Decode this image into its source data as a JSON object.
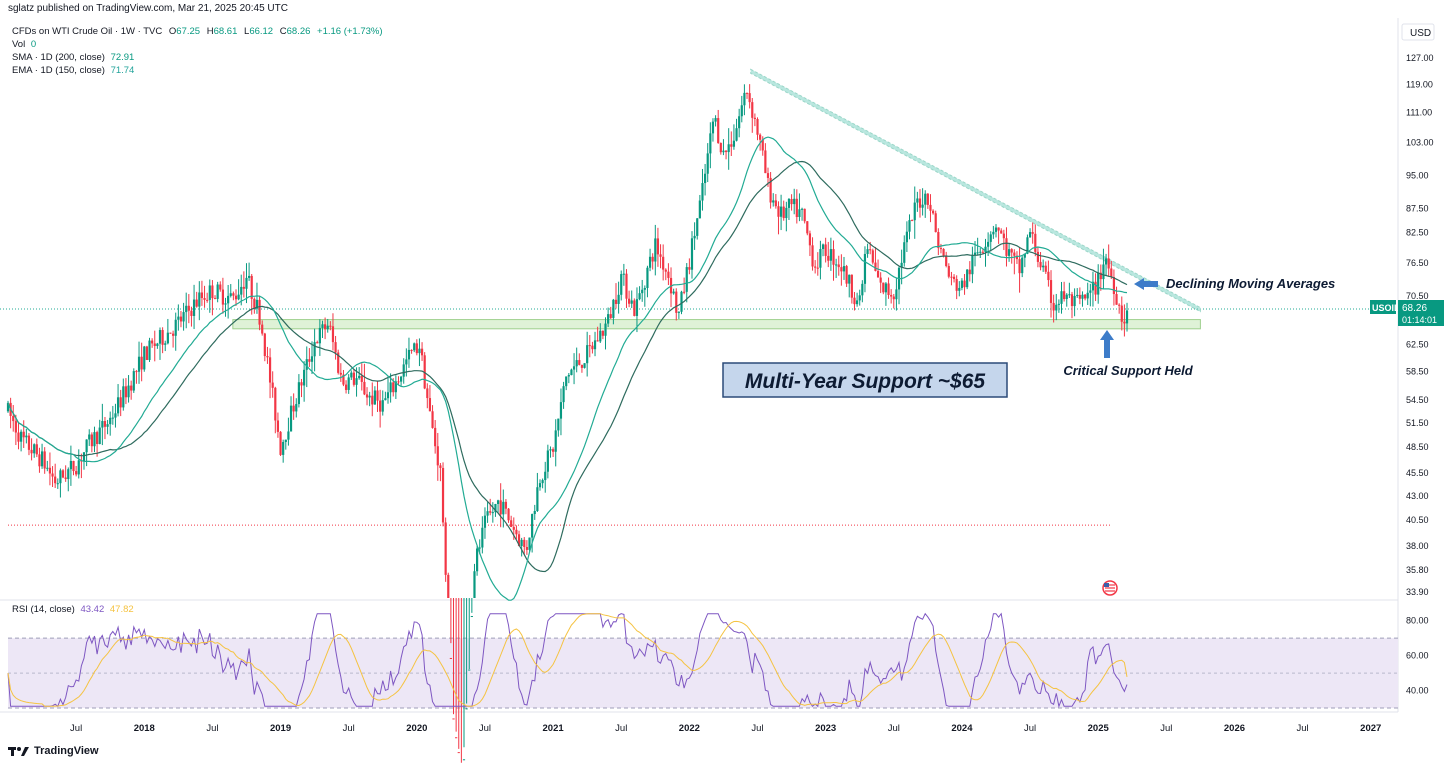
{
  "header": {
    "published": "sglatz published on TradingView.com, Mar 21, 2025 20:45 UTC"
  },
  "legend": {
    "symbol": "CFDs on WTI Crude Oil · 1W · TVC",
    "o_label": "O",
    "o_value": "67.25",
    "h_label": "H",
    "h_value": "68.61",
    "l_label": "L",
    "l_value": "66.12",
    "c_label": "C",
    "c_value": "68.26",
    "change": "+1.16 (+1.73%)",
    "vol_label": "Vol",
    "vol_value": "0",
    "sma_label": "SMA · 1D (200, close)",
    "sma_value": "72.91",
    "ema_label": "EMA · 1D (150, close)",
    "ema_value": "71.74"
  },
  "rsi_legend": {
    "label": "RSI (14, close)",
    "rsi_value": "43.42",
    "ma_value": "47.82"
  },
  "currency": "USD",
  "price_tag": {
    "symbol": "USOIL",
    "price": "68.26",
    "countdown": "01:14:01"
  },
  "annotations": {
    "support_box": "Multi-Year Support ~$65",
    "declining": "Declining Moving Averages",
    "critical": "Critical Support Held"
  },
  "footer": {
    "brand": "TradingView"
  },
  "colors": {
    "up": "#089981",
    "down": "#f23645",
    "sma": "#2e6b5e",
    "ema": "#22ab94",
    "trendline": "#7fd4c4",
    "support": "#c5e8b7",
    "rsi": "#7e57c2",
    "rsi_ma": "#f5c342",
    "rsi_band": "#ede7f6",
    "arrow": "#3d7cc9"
  },
  "chart_data": [
    {
      "type": "candlestick",
      "title": "CFDs on WTI Crude Oil · 1W · TVC",
      "y_scale": "log",
      "ylim": [
        33.9,
        127.0
      ],
      "y_ticks": [
        "127.00",
        "119.00",
        "111.00",
        "103.00",
        "95.00",
        "87.50",
        "82.50",
        "76.50",
        "70.50",
        "62.50",
        "58.50",
        "54.50",
        "51.50",
        "48.50",
        "45.50",
        "43.00",
        "40.50",
        "38.00",
        "35.80",
        "33.90"
      ],
      "x_ticks": [
        "Jul",
        "2018",
        "Jul",
        "2019",
        "Jul",
        "2020",
        "Jul",
        "2021",
        "Jul",
        "2022",
        "Jul",
        "2023",
        "Jul",
        "2024",
        "Jul",
        "2025",
        "Jul",
        "2026",
        "Jul",
        "2027"
      ],
      "x_tick_dates": [
        2017.5,
        2018.0,
        2018.5,
        2019.0,
        2019.5,
        2020.0,
        2020.5,
        2021.0,
        2021.5,
        2022.0,
        2022.5,
        2023.0,
        2023.5,
        2024.0,
        2024.5,
        2025.0,
        2025.5,
        2026.0,
        2026.5,
        2027.0
      ],
      "xlim": [
        2017.0,
        2027.2
      ],
      "price_path": [
        [
          2017.0,
          53.0
        ],
        [
          2017.1,
          49.5
        ],
        [
          2017.25,
          47.0
        ],
        [
          2017.35,
          44.5
        ],
        [
          2017.5,
          46.5
        ],
        [
          2017.6,
          49.0
        ],
        [
          2017.75,
          52.0
        ],
        [
          2017.9,
          57.0
        ],
        [
          2018.0,
          61.0
        ],
        [
          2018.1,
          63.0
        ],
        [
          2018.25,
          66.0
        ],
        [
          2018.4,
          70.0
        ],
        [
          2018.5,
          71.5
        ],
        [
          2018.65,
          70.0
        ],
        [
          2018.75,
          74.0
        ],
        [
          2018.85,
          67.0
        ],
        [
          2018.95,
          54.0
        ],
        [
          2019.0,
          48.5
        ],
        [
          2019.1,
          54.0
        ],
        [
          2019.25,
          63.0
        ],
        [
          2019.35,
          66.0
        ],
        [
          2019.45,
          57.0
        ],
        [
          2019.55,
          57.5
        ],
        [
          2019.65,
          55.0
        ],
        [
          2019.75,
          54.0
        ],
        [
          2019.85,
          57.0
        ],
        [
          2019.95,
          61.0
        ],
        [
          2020.02,
          62.5
        ],
        [
          2020.1,
          52.0
        ],
        [
          2020.18,
          45.0
        ],
        [
          2020.25,
          25.0
        ],
        [
          2020.33,
          20.0
        ],
        [
          2020.42,
          36.0
        ],
        [
          2020.5,
          40.0
        ],
        [
          2020.6,
          42.5
        ],
        [
          2020.7,
          40.0
        ],
        [
          2020.8,
          37.5
        ],
        [
          2020.9,
          45.0
        ],
        [
          2021.0,
          48.5
        ],
        [
          2021.1,
          58.0
        ],
        [
          2021.25,
          61.0
        ],
        [
          2021.4,
          66.0
        ],
        [
          2021.5,
          74.0
        ],
        [
          2021.6,
          68.0
        ],
        [
          2021.75,
          80.0
        ],
        [
          2021.85,
          74.0
        ],
        [
          2021.92,
          67.0
        ],
        [
          2022.0,
          77.0
        ],
        [
          2022.1,
          92.0
        ],
        [
          2022.18,
          110.0
        ],
        [
          2022.25,
          100.0
        ],
        [
          2022.33,
          105.0
        ],
        [
          2022.42,
          118.0
        ],
        [
          2022.5,
          106.0
        ],
        [
          2022.58,
          92.0
        ],
        [
          2022.67,
          86.0
        ],
        [
          2022.75,
          88.0
        ],
        [
          2022.83,
          86.0
        ],
        [
          2022.92,
          76.0
        ],
        [
          2023.0,
          79.0
        ],
        [
          2023.1,
          76.5
        ],
        [
          2023.25,
          69.0
        ],
        [
          2023.3,
          80.0
        ],
        [
          2023.4,
          72.0
        ],
        [
          2023.5,
          71.0
        ],
        [
          2023.58,
          80.0
        ],
        [
          2023.67,
          89.0
        ],
        [
          2023.75,
          90.5
        ],
        [
          2023.83,
          80.0
        ],
        [
          2023.92,
          73.0
        ],
        [
          2024.0,
          72.0
        ],
        [
          2024.1,
          78.0
        ],
        [
          2024.25,
          84.5
        ],
        [
          2024.33,
          79.0
        ],
        [
          2024.42,
          75.0
        ],
        [
          2024.5,
          82.5
        ],
        [
          2024.58,
          76.0
        ],
        [
          2024.67,
          69.0
        ],
        [
          2024.75,
          70.5
        ],
        [
          2024.83,
          69.0
        ],
        [
          2024.92,
          70.0
        ],
        [
          2025.0,
          73.0
        ],
        [
          2025.05,
          78.0
        ],
        [
          2025.12,
          72.0
        ],
        [
          2025.18,
          66.5
        ],
        [
          2025.22,
          68.26
        ]
      ],
      "sma_200": {
        "name": "SMA · 1D (200, close)",
        "last": 72.91
      },
      "ema_150": {
        "name": "EMA · 1D (150, close)",
        "last": 71.74
      },
      "support_zone": [
        65.0,
        66.5
      ],
      "trendline": [
        [
          2022.45,
          123.5
        ],
        [
          2025.75,
          68.5
        ]
      ]
    },
    {
      "type": "line",
      "title": "RSI (14, close)",
      "ylim": [
        30,
        85
      ],
      "y_ticks": [
        "80.00",
        "60.00",
        "40.00"
      ],
      "bands": [
        30,
        70
      ],
      "series": [
        {
          "name": "RSI",
          "last": 43.42
        },
        {
          "name": "RSI-based MA",
          "last": 47.82
        }
      ]
    }
  ]
}
